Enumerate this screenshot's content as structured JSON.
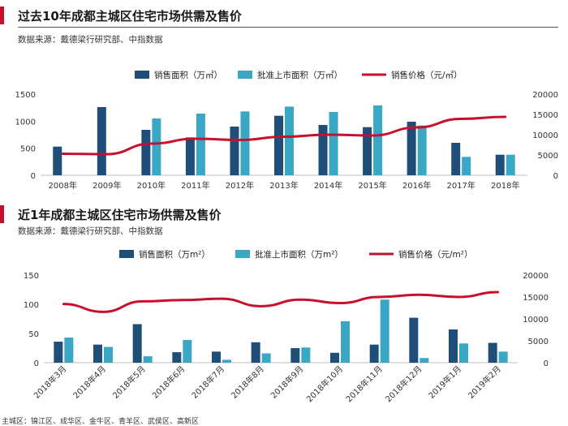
{
  "colors": {
    "sales_area": "#1f4e79",
    "approved_area": "#3aa7c4",
    "price": "#c8102e",
    "accent": "#c8102e"
  },
  "chart1": {
    "title": "过去10年成都主城区住宅市场供需及售价",
    "source": "数据来源：戴德梁行研究部、中指数据",
    "legend": {
      "sales_area": "销售面积（万㎡）",
      "approved_area": "批准上市面积（万㎡）",
      "price": "销售价格（元/㎡）"
    }
  },
  "chart2": {
    "title": "近1年成都主城区住宅市场供需及售价",
    "source": "数据来源：戴德梁行研究部、中指数据",
    "legend": {
      "sales_area": "销售面积（万m²）",
      "approved_area": "批准上市面积（万m²）",
      "price": "销售价格（元/m²）"
    },
    "footnote": "主城区：锦江区、成华区、金牛区、青羊区、武侯区、高新区"
  },
  "chart_data": [
    {
      "type": "bar",
      "combo": "bar+line",
      "categories": [
        "2008年",
        "2009年",
        "2010年",
        "2011年",
        "2012年",
        "2013年",
        "2014年",
        "2015年",
        "2016年",
        "2017年",
        "2018年"
      ],
      "series": [
        {
          "name": "销售面积（万㎡）",
          "type": "bar",
          "axis": "left",
          "values": [
            530,
            1260,
            840,
            700,
            900,
            1100,
            930,
            890,
            990,
            600,
            380
          ]
        },
        {
          "name": "批准上市面积（万㎡）",
          "type": "bar",
          "axis": "left",
          "values": [
            null,
            null,
            1050,
            1140,
            1180,
            1270,
            1170,
            1290,
            920,
            340,
            380
          ]
        },
        {
          "name": "销售价格（元/㎡）",
          "type": "line",
          "axis": "right",
          "values": [
            5300,
            5200,
            7800,
            9000,
            8700,
            9500,
            10000,
            9800,
            11800,
            13900,
            14400
          ]
        }
      ],
      "y_left": {
        "ylim": [
          0,
          1500
        ],
        "ticks": [
          0,
          500,
          1000,
          1500
        ]
      },
      "y_right": {
        "ylim": [
          0,
          20000
        ],
        "ticks": [
          0,
          5000,
          10000,
          15000,
          20000
        ]
      },
      "legend_position": "top-center",
      "grid": false
    },
    {
      "type": "bar",
      "combo": "bar+line",
      "categories": [
        "2018年3月",
        "2018年4月",
        "2018年5月",
        "2018年6月",
        "2018年7月",
        "2018年8月",
        "2018年9月",
        "2018年10月",
        "2018年11月",
        "2018年12月",
        "2019年1月",
        "2019年2月"
      ],
      "series": [
        {
          "name": "销售面积（万m²）",
          "type": "bar",
          "axis": "left",
          "values": [
            36,
            31,
            66,
            18,
            19,
            35,
            25,
            17,
            31,
            77,
            57,
            34
          ]
        },
        {
          "name": "批准上市面积（万m²）",
          "type": "bar",
          "axis": "left",
          "values": [
            43,
            27,
            11,
            39,
            5,
            16,
            26,
            71,
            108,
            8,
            33,
            19
          ]
        },
        {
          "name": "销售价格（元/m²）",
          "type": "line",
          "axis": "right",
          "values": [
            13400,
            11600,
            14000,
            14300,
            14600,
            12900,
            14400,
            13600,
            15000,
            15500,
            15000,
            16100
          ]
        }
      ],
      "y_left": {
        "ylim": [
          0,
          150
        ],
        "ticks": [
          0,
          50,
          100,
          150
        ]
      },
      "y_right": {
        "ylim": [
          0,
          20000
        ],
        "ticks": [
          0,
          5000,
          10000,
          15000,
          20000
        ]
      },
      "legend_position": "top-center",
      "grid": false
    }
  ]
}
